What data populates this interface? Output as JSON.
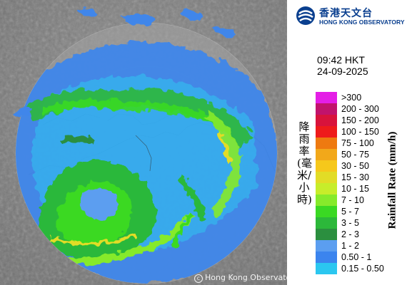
{
  "map": {
    "copyright": "Hong Kong Observatory"
  },
  "logo": {
    "chinese": "香港天文台",
    "english": "HONG KONG OBSERVATORY"
  },
  "time": "09:42 HKT",
  "date": "24-09-2025",
  "axis_label_zh": "降雨率(毫米/小時)",
  "axis_label_en": "Rainfall Rate (mm/h)",
  "legend": [
    {
      "label": ">300",
      "color": "#e41ee6"
    },
    {
      "label": "200 - 300",
      "color": "#c1136c"
    },
    {
      "label": "150 - 200",
      "color": "#d8133c"
    },
    {
      "label": "100 - 150",
      "color": "#ee1b1b"
    },
    {
      "label": "75 - 100",
      "color": "#ee7a10"
    },
    {
      "label": "50 - 75",
      "color": "#f2a81a"
    },
    {
      "label": "30 - 50",
      "color": "#f6c81b"
    },
    {
      "label": "15 - 30",
      "color": "#e2dc26"
    },
    {
      "label": "10 - 15",
      "color": "#c7ed2a"
    },
    {
      "label": "7 - 10",
      "color": "#86ea2b"
    },
    {
      "label": "5 - 7",
      "color": "#3ad923"
    },
    {
      "label": "3 - 5",
      "color": "#2cb83a"
    },
    {
      "label": "2 - 3",
      "color": "#2b8f3f"
    },
    {
      "label": "1 - 2",
      "color": "#5b9ef0"
    },
    {
      "label": "0.50 - 1",
      "color": "#3b84ee"
    },
    {
      "label": "0.15 - 0.50",
      "color": "#2bc7f0"
    }
  ],
  "colors": {
    "background_map": "#8a8a8a",
    "radar_range": "#9a9a9a"
  }
}
